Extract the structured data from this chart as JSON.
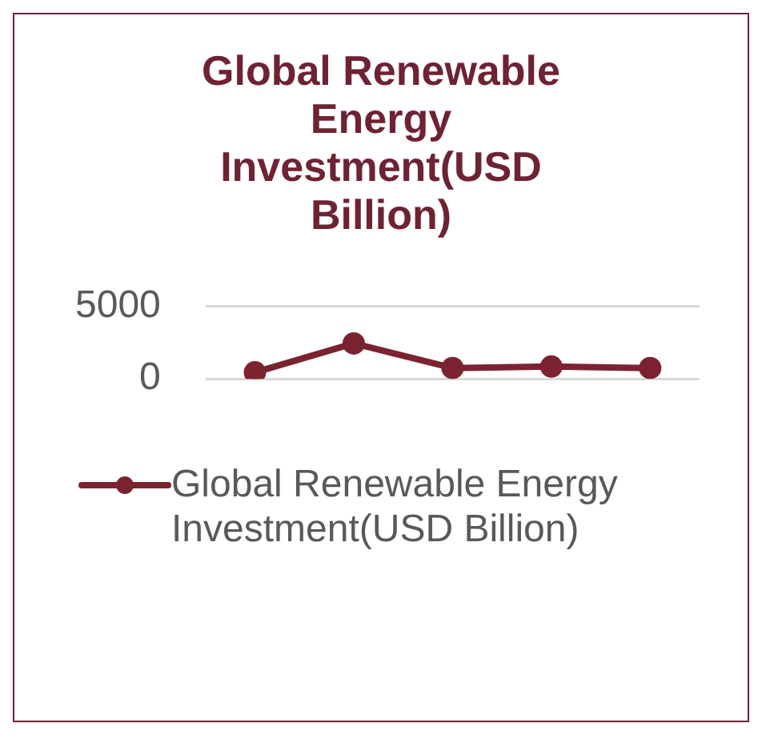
{
  "chart_data": {
    "type": "line",
    "title": "Global Renewable Energy Investment(USD Billion)",
    "categories": [
      null,
      null,
      null,
      null,
      null
    ],
    "series": [
      {
        "name": "Global Renewable Energy Investment(USD Billion)",
        "color": "#7b2330",
        "values": [
          450,
          2450,
          750,
          850,
          750
        ]
      }
    ],
    "ylim": [
      0,
      5000
    ],
    "yticks": [
      0,
      5000
    ],
    "grid": "y",
    "legend": "bottom",
    "marker": "circle",
    "line_style": "solid"
  }
}
